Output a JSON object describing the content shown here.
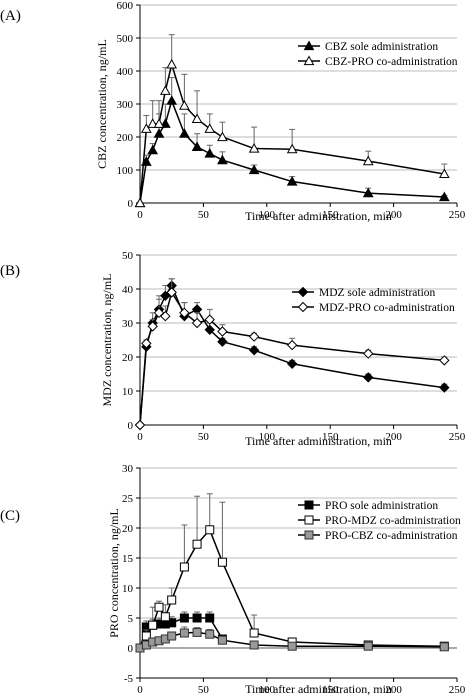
{
  "chart_data": [
    {
      "type": "line",
      "panel_label": "(A)",
      "xlabel": "Time after administration, min",
      "ylabel": "CBZ concentration, ng/mL",
      "xlim": [
        0,
        250
      ],
      "ylim": [
        0,
        600
      ],
      "xticks": [
        0,
        50,
        100,
        150,
        200,
        250
      ],
      "yticks": [
        0,
        100,
        200,
        300,
        400,
        500,
        600
      ],
      "grid": "horizontal",
      "legend_position": "top-right",
      "series": [
        {
          "name": "CBZ sole administration",
          "marker": "filled-triangle",
          "x": [
            0,
            5,
            10,
            15,
            20,
            25,
            35,
            45,
            55,
            65,
            90,
            120,
            180,
            240
          ],
          "values": [
            0,
            125,
            160,
            210,
            240,
            310,
            210,
            170,
            150,
            130,
            100,
            65,
            30,
            18
          ],
          "error": [
            0,
            20,
            20,
            60,
            60,
            70,
            60,
            40,
            25,
            25,
            15,
            15,
            15,
            5
          ]
        },
        {
          "name": "CBZ-PRO co-administration",
          "marker": "open-triangle",
          "x": [
            0,
            5,
            10,
            15,
            20,
            25,
            35,
            45,
            55,
            65,
            90,
            120,
            180,
            240
          ],
          "values": [
            0,
            225,
            240,
            240,
            340,
            420,
            295,
            255,
            225,
            200,
            165,
            163,
            127,
            88
          ],
          "error": [
            0,
            40,
            70,
            70,
            70,
            90,
            95,
            85,
            45,
            45,
            65,
            60,
            30,
            30
          ]
        }
      ]
    },
    {
      "type": "line",
      "panel_label": "(B)",
      "xlabel": "Time after administration, min",
      "ylabel": "MDZ concentration, ng/mL",
      "xlim": [
        0,
        250
      ],
      "ylim": [
        0,
        50
      ],
      "xticks": [
        0,
        50,
        100,
        150,
        200,
        250
      ],
      "yticks": [
        0,
        10,
        20,
        30,
        40,
        50
      ],
      "grid": "horizontal",
      "legend_position": "top-right",
      "series": [
        {
          "name": "MDZ sole administration",
          "marker": "filled-diamond",
          "x": [
            0,
            5,
            10,
            15,
            20,
            25,
            35,
            45,
            55,
            65,
            90,
            120,
            180,
            240
          ],
          "values": [
            0,
            23,
            30,
            34,
            38,
            41,
            32,
            34,
            28,
            24.5,
            22,
            18,
            14,
            11
          ],
          "error": [
            0,
            1,
            3,
            4,
            3,
            2,
            4,
            2,
            2,
            1,
            1,
            1,
            1,
            1
          ]
        },
        {
          "name": "MDZ-PRO co-administration",
          "marker": "open-diamond",
          "x": [
            0,
            5,
            10,
            15,
            20,
            25,
            35,
            45,
            55,
            65,
            90,
            120,
            180,
            240
          ],
          "values": [
            0,
            24,
            29,
            33,
            32,
            39,
            33,
            30,
            31,
            27.5,
            26,
            23.5,
            21,
            19
          ],
          "error": [
            0,
            1,
            2,
            4,
            3,
            4,
            3,
            3,
            3,
            2,
            1,
            2,
            1,
            1
          ]
        }
      ]
    },
    {
      "type": "line",
      "panel_label": "(C)",
      "xlabel": "Time after administration, min",
      "ylabel": "PRO concentration, ng/mL",
      "xlim": [
        0,
        250
      ],
      "ylim": [
        -5,
        30
      ],
      "xticks": [
        0,
        50,
        100,
        150,
        200,
        250
      ],
      "yticks": [
        -5,
        0,
        5,
        10,
        15,
        20,
        25,
        30
      ],
      "grid": "horizontal",
      "legend_position": "top-right",
      "series": [
        {
          "name": "PRO sole administration",
          "marker": "filled-square",
          "x": [
            0,
            5,
            10,
            15,
            20,
            25,
            35,
            45,
            55,
            65
          ],
          "values": [
            0,
            3.5,
            3.8,
            4,
            4,
            4.2,
            5,
            5,
            5,
            1.5
          ],
          "error": [
            0,
            1,
            1,
            1,
            1,
            1,
            1,
            1,
            1,
            0.5
          ]
        },
        {
          "name": "PRO-MDZ co-administration",
          "marker": "open-square",
          "x": [
            0,
            5,
            10,
            15,
            20,
            25,
            35,
            45,
            55,
            65,
            90,
            120,
            180,
            240
          ],
          "values": [
            0,
            2,
            3.8,
            6.8,
            5.2,
            8,
            13.5,
            17.3,
            19.7,
            14.3,
            2.5,
            1,
            0.5,
            0.3
          ],
          "error": [
            0,
            1,
            3,
            1,
            2,
            2,
            7,
            8,
            6,
            10,
            3,
            0.5,
            0.3,
            0.3
          ]
        },
        {
          "name": "PRO-CBZ co-administration",
          "marker": "gray-square",
          "x": [
            0,
            5,
            10,
            15,
            20,
            25,
            35,
            45,
            55,
            65,
            90,
            120,
            180,
            240
          ],
          "values": [
            0,
            0.5,
            1,
            1.2,
            1.5,
            2,
            2.5,
            2.6,
            2.3,
            1.3,
            0.5,
            0.3,
            0.3,
            0.2
          ],
          "error": [
            0,
            0.5,
            0.5,
            0.5,
            0.5,
            0.5,
            1,
            0.8,
            0.8,
            0.5,
            0.3,
            0.2,
            0.2,
            0.2
          ]
        }
      ]
    }
  ]
}
